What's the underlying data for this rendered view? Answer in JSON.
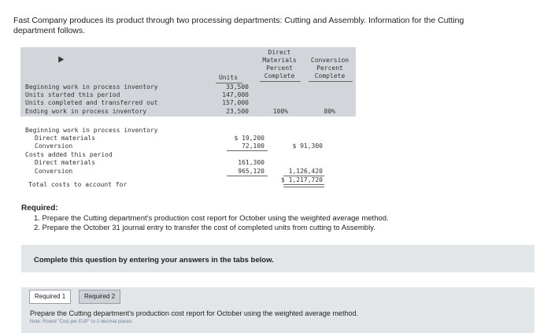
{
  "intro": "Fast Company produces its product through two processing departments: Cutting and Assembly. Information for the Cutting department follows.",
  "table": {
    "headers": {
      "units": "Units",
      "direct_materials": [
        "Direct",
        "Materials",
        "Percent",
        "Complete"
      ],
      "conversion": [
        "Conversion",
        "Percent",
        "Complete"
      ]
    },
    "unit_rows": [
      {
        "label": "Beginning work in process inventory",
        "units": "33,500",
        "dm": "",
        "conv": ""
      },
      {
        "label": "Units started this period",
        "units": "147,000",
        "dm": "",
        "conv": ""
      },
      {
        "label": "Units completed and transferred out",
        "units": "157,000",
        "dm": "",
        "conv": ""
      },
      {
        "label": "Ending work in process inventory",
        "units": "23,500",
        "dm": "100%",
        "conv": "80%"
      }
    ],
    "cost_rows": {
      "beg_wip": "Beginning work in process inventory",
      "beg_dm_label": "Direct materials",
      "beg_dm_value": "$ 19,200",
      "beg_conv_label": "Conversion",
      "beg_conv_value": "72,100",
      "beg_total": "$ 91,300",
      "added": "Costs added this period",
      "added_dm_label": "Direct materials",
      "added_dm_value": "161,300",
      "added_conv_label": "Conversion",
      "added_conv_value": "965,120",
      "added_total": "1,126,420",
      "total_label": "Total costs to account for",
      "total_value": "$ 1,217,720"
    }
  },
  "required": {
    "heading": "Required:",
    "items": [
      "1. Prepare the Cutting department's production cost report for October using the weighted average method.",
      "2. Prepare the October 31 journal entry to transfer the cost of completed units from cutting to Assembly."
    ]
  },
  "complete_text": "Complete this question by entering your answers in the tabs below.",
  "tabs": [
    "Required 1",
    "Required 2"
  ],
  "tab_content": {
    "description": "Prepare the Cutting department's production cost report for October using the weighted average method.",
    "note": "Note: Round \"Cost per EUP\" to 2 decimal places."
  },
  "colors": {
    "table_shade": "#d2d6db",
    "panel": "#e3e6e9"
  }
}
